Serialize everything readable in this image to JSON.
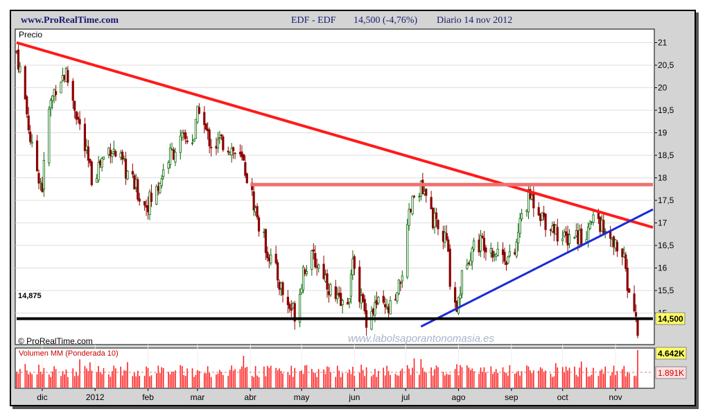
{
  "header": {
    "site": "www.ProRealTime.com",
    "ticker": "EDF - EDF",
    "price_change": "14,500 (-4,76%)",
    "period_date": "Diario  14 nov 2012"
  },
  "price_panel": {
    "title": "Precio",
    "copyright": "© ProRealTime.com",
    "watermark": "www.labolsaporantonomasia.es",
    "support_label": "14,875",
    "last_price_label": "14,500"
  },
  "volume_panel": {
    "title": "Volumen MM (Ponderada 10)",
    "volume_label": "4.642K",
    "ma_label": "1.891K"
  },
  "colors": {
    "background": "#d4d4d4",
    "panel": "#ffffff",
    "up": "#006400",
    "down": "#8b0000",
    "resistance_line": "#ff1a1a",
    "horizontal_resistance": "#f07070",
    "uptrend_line": "#1a2bd6",
    "support_line": "#000000",
    "volume_bars": "#ff2020",
    "header_text": "#1a1a6e"
  },
  "chart_data": [
    {
      "type": "line",
      "title": "Precio",
      "description_series": "Daily candlestick approximation of EDF closing prices",
      "y_ticks": [
        "21",
        "20,5",
        "20",
        "19,5",
        "19",
        "18,5",
        "18",
        "17,5",
        "17",
        "16,5",
        "16",
        "15,5",
        "15"
      ],
      "y_tick_values": [
        21,
        20.5,
        20,
        19.5,
        19,
        18.5,
        18,
        17.5,
        17,
        16.5,
        16,
        15.5,
        15
      ],
      "ylim": [
        14.3,
        21.3
      ],
      "x_ticks": [
        "dic",
        "2012",
        "feb",
        "mar",
        "abr",
        "may",
        "jun",
        "jul",
        "ago",
        "sep",
        "oct",
        "nov"
      ],
      "x_tick_dates": [
        "2011-12-01",
        "2012-01-01",
        "2012-02-01",
        "2012-03-01",
        "2012-04-01",
        "2012-05-01",
        "2012-06-01",
        "2012-07-01",
        "2012-08-01",
        "2012-09-01",
        "2012-10-01",
        "2012-11-01"
      ],
      "x_range": [
        "2011-11-16",
        "2012-11-14"
      ],
      "series": [
        {
          "x": [
            "2011-11-16",
            "2011-11-20",
            "2011-11-25",
            "2011-12-01",
            "2011-12-05",
            "2011-12-10",
            "2011-12-15",
            "2011-12-20",
            "2011-12-30",
            "2012-01-05",
            "2012-01-10",
            "2012-01-20",
            "2012-01-30",
            "2012-02-05",
            "2012-02-12",
            "2012-02-20",
            "2012-02-28",
            "2012-03-02",
            "2012-03-06",
            "2012-03-10",
            "2012-03-15",
            "2012-03-20",
            "2012-03-28",
            "2012-04-02",
            "2012-04-07",
            "2012-04-12",
            "2012-04-17",
            "2012-04-22",
            "2012-04-28",
            "2012-05-02",
            "2012-05-08",
            "2012-05-14",
            "2012-05-20",
            "2012-05-27",
            "2012-06-01",
            "2012-06-04",
            "2012-06-08",
            "2012-06-14",
            "2012-06-20",
            "2012-06-26",
            "2012-07-01",
            "2012-07-03",
            "2012-07-08",
            "2012-07-14",
            "2012-07-20",
            "2012-07-25",
            "2012-07-27",
            "2012-07-31",
            "2012-08-05",
            "2012-08-10",
            "2012-08-16",
            "2012-08-22",
            "2012-08-28",
            "2012-09-02",
            "2012-09-07",
            "2012-09-12",
            "2012-09-16",
            "2012-09-20",
            "2012-09-26",
            "2012-10-02",
            "2012-10-07",
            "2012-10-12",
            "2012-10-17",
            "2012-10-21",
            "2012-10-25",
            "2012-10-30",
            "2012-11-03",
            "2012-11-06",
            "2012-11-09",
            "2012-11-12",
            "2012-11-14"
          ],
          "close": [
            20.8,
            20.0,
            18.6,
            17.8,
            19.5,
            20.2,
            20.3,
            19.6,
            18.0,
            18.4,
            18.7,
            18.1,
            17.4,
            17.6,
            18.4,
            18.8,
            18.9,
            19.6,
            19.0,
            18.7,
            18.8,
            18.7,
            18.3,
            17.6,
            16.8,
            16.3,
            15.8,
            15.2,
            15.0,
            16.0,
            16.2,
            15.9,
            15.3,
            15.1,
            16.2,
            15.4,
            14.9,
            15.2,
            15.0,
            15.3,
            16.4,
            17.1,
            17.9,
            17.4,
            16.8,
            16.6,
            15.8,
            15.1,
            16.2,
            16.5,
            16.6,
            16.4,
            16.3,
            16.1,
            17.2,
            17.6,
            17.4,
            17.1,
            16.9,
            16.6,
            16.8,
            16.7,
            16.9,
            17.2,
            16.8,
            16.5,
            16.5,
            16.1,
            15.4,
            15.1,
            14.5
          ]
        }
      ],
      "trendlines": [
        {
          "name": "directriz bajista",
          "from": [
            "2011-11-16",
            21.0
          ],
          "to": [
            "2012-11-14",
            16.9
          ]
        },
        {
          "name": "resistencia horizontal",
          "from": [
            "2012-04-01",
            17.85
          ],
          "to": [
            "2012-11-14",
            17.85
          ]
        },
        {
          "name": "directriz alcista",
          "from": [
            "2012-07-10",
            14.7
          ],
          "to": [
            "2012-11-14",
            17.3
          ]
        },
        {
          "name": "soporte",
          "from": [
            "2011-11-16",
            14.875
          ],
          "to": [
            "2012-11-14",
            14.875
          ]
        }
      ],
      "support_value": 14.875,
      "last_price": 14.5
    },
    {
      "type": "bar",
      "title": "Volumen MM (Ponderada 10)",
      "last_volume": 4642,
      "moving_average": 1891,
      "units": "K"
    }
  ]
}
